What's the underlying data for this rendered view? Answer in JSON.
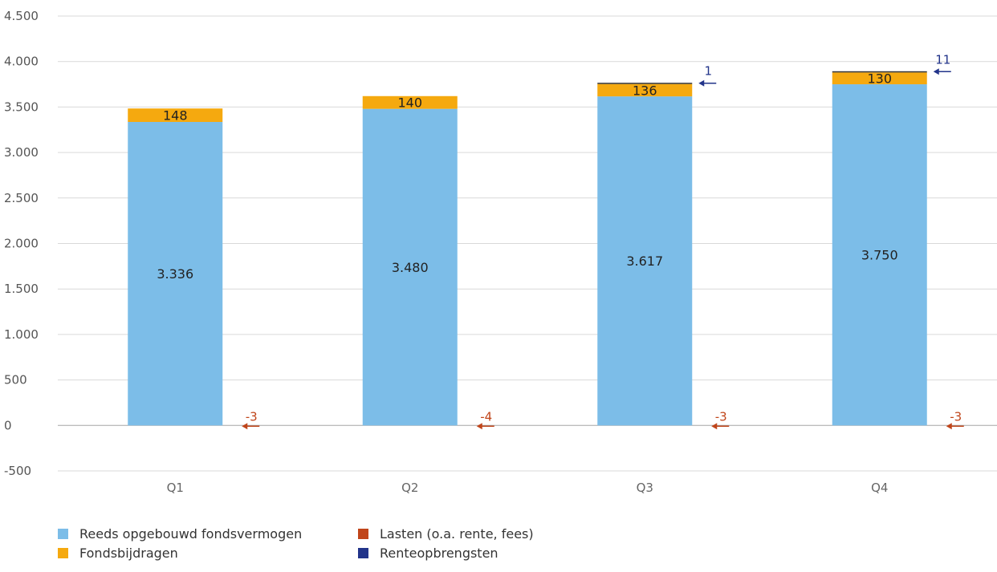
{
  "chart_data": {
    "type": "bar",
    "stacked": true,
    "categories": [
      "Q1",
      "Q2",
      "Q3",
      "Q4"
    ],
    "series": [
      {
        "name": "Reeds opgebouwd fondsvermogen",
        "color": "#7cbde8",
        "values": [
          3336,
          3480,
          3617,
          3750
        ],
        "labels": [
          "3.336",
          "3.480",
          "3.617",
          "3.750"
        ]
      },
      {
        "name": "Fondsbijdragen",
        "color": "#f5a90f",
        "values": [
          148,
          140,
          136,
          130
        ],
        "labels": [
          "148",
          "140",
          "136",
          "130"
        ]
      },
      {
        "name": "Lasten (o.a. rente, fees)",
        "color": "#c0451a",
        "values": [
          -3,
          -4,
          -3,
          -3
        ],
        "labels": [
          "-3",
          "-4",
          "-3",
          "-3"
        ]
      },
      {
        "name": "Renteopbrengsten",
        "color": "#22348a",
        "values": [
          0,
          0,
          1,
          11
        ],
        "labels": [
          "",
          "",
          "1",
          "11"
        ]
      }
    ],
    "ylim": [
      -500,
      4500
    ],
    "yticks": [
      -500,
      0,
      500,
      1000,
      1500,
      2000,
      2500,
      3000,
      3500,
      4000,
      4500
    ],
    "ytick_labels": [
      "-500",
      "0",
      "500",
      "1.000",
      "1.500",
      "2.000",
      "2.500",
      "3.000",
      "3.500",
      "4.000",
      "4.500"
    ],
    "grid": true,
    "legend": "bottom-left",
    "title": "",
    "xlabel": "",
    "ylabel": ""
  }
}
